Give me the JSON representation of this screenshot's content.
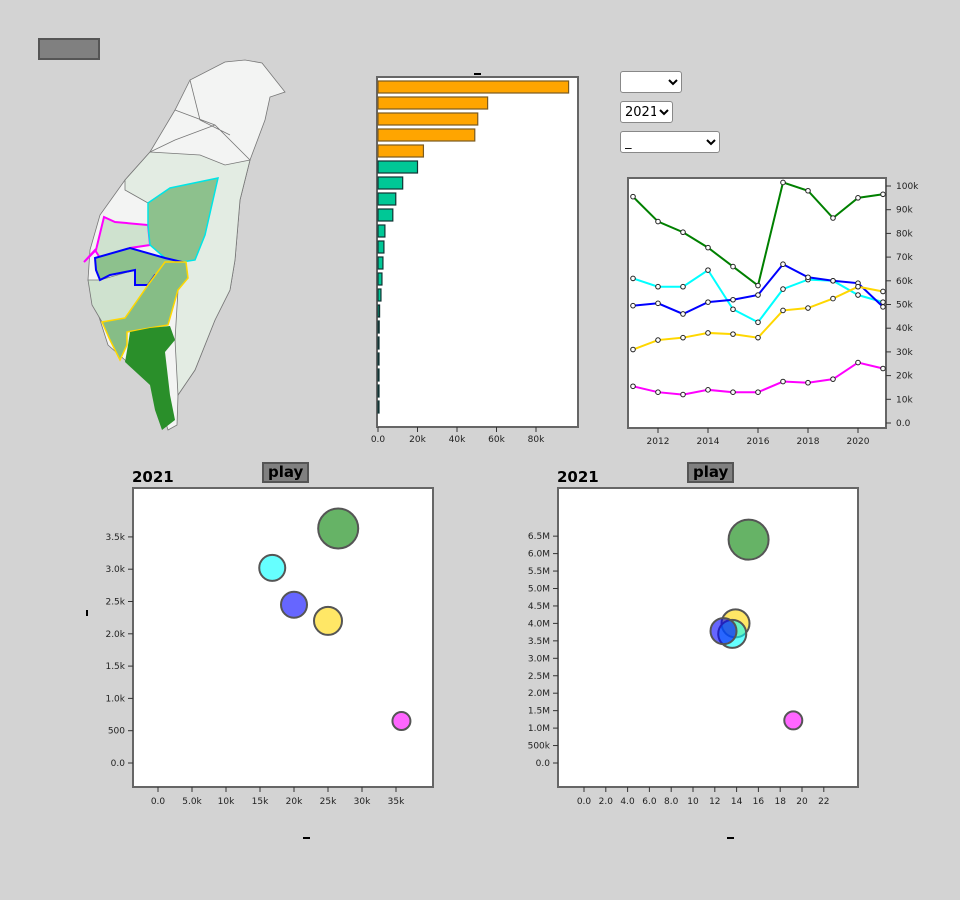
{
  "controls": {
    "select1_value": "",
    "year_select_value": "2021",
    "select3_value": "_"
  },
  "colors": {
    "green": "#008000",
    "cyan": "#00ffff",
    "blue": "#0000ff",
    "yellow": "#ffd700",
    "magenta": "#ff00ff",
    "bar_orange": "#ffa500",
    "bar_teal": "#00c896"
  },
  "bar_chart": {
    "type": "bar",
    "orientation": "horizontal",
    "title": "_",
    "xticks": [
      "0.0",
      "20k",
      "40k",
      "60k",
      "80k"
    ],
    "xlim": [
      0,
      100000
    ],
    "values": [
      96500,
      55500,
      50500,
      49000,
      23000,
      20000,
      12500,
      9000,
      7500,
      3500,
      3000,
      2500,
      2000,
      1500,
      800,
      600,
      100,
      100,
      100,
      100,
      100
    ],
    "highlight_count": 5
  },
  "chart_data": [
    {
      "type": "line",
      "x": [
        2011,
        2012,
        2013,
        2014,
        2015,
        2016,
        2017,
        2018,
        2019,
        2020,
        2021
      ],
      "xticks": [
        "2012",
        "2014",
        "2016",
        "2018",
        "2020"
      ],
      "yticks": [
        "0.0",
        "10k",
        "20k",
        "30k",
        "40k",
        "50k",
        "60k",
        "70k",
        "80k",
        "90k",
        "100k"
      ],
      "ylim": [
        0,
        102000
      ],
      "series": [
        {
          "name": "green",
          "color": "#008000",
          "values": [
            95500,
            85000,
            80500,
            74000,
            66000,
            58000,
            101500,
            98000,
            86500,
            95000,
            96500
          ]
        },
        {
          "name": "cyan",
          "color": "#00ffff",
          "values": [
            61000,
            57500,
            57500,
            64500,
            48000,
            42500,
            56500,
            60500,
            60000,
            54000,
            51000
          ]
        },
        {
          "name": "blue",
          "color": "#0000ff",
          "values": [
            49500,
            50500,
            46000,
            51000,
            52000,
            54000,
            67000,
            61500,
            60000,
            59000,
            49000
          ]
        },
        {
          "name": "yellow",
          "color": "#ffd700",
          "values": [
            31000,
            35000,
            36000,
            38000,
            37500,
            36000,
            47500,
            48500,
            52500,
            57500,
            55500
          ]
        },
        {
          "name": "magenta",
          "color": "#ff00ff",
          "values": [
            15500,
            13000,
            12000,
            14000,
            13000,
            13000,
            17500,
            17000,
            18500,
            25500,
            23000
          ]
        }
      ]
    },
    {
      "type": "scatter",
      "title": "2021",
      "play_label": "play",
      "xlabel": "_",
      "ylabel": "_",
      "xticks": [
        "0.0",
        "5.0k",
        "10k",
        "15k",
        "20k",
        "25k",
        "30k",
        "35k"
      ],
      "xtick_values": [
        0,
        5000,
        10000,
        15000,
        20000,
        25000,
        30000,
        35000
      ],
      "yticks": [
        "0.0",
        "500",
        "1.0k",
        "1.5k",
        "2.0k",
        "2.5k",
        "3.0k",
        "3.5k"
      ],
      "ytick_values": [
        0,
        500,
        1000,
        1500,
        2000,
        2500,
        3000,
        3500
      ],
      "xlim": [
        -3700,
        40400
      ],
      "ylim": [
        -370,
        4270
      ],
      "points": [
        {
          "name": "green",
          "color": "#008000",
          "x": 26500,
          "y": 3630,
          "size": 20
        },
        {
          "name": "cyan",
          "color": "#00ffff",
          "x": 16800,
          "y": 3020,
          "size": 13
        },
        {
          "name": "blue",
          "color": "#0000ff",
          "x": 20000,
          "y": 2450,
          "size": 13
        },
        {
          "name": "yellow",
          "color": "#ffd700",
          "x": 25000,
          "y": 2200,
          "size": 14
        },
        {
          "name": "magenta",
          "color": "#ff00ff",
          "x": 35800,
          "y": 650,
          "size": 9
        }
      ]
    },
    {
      "type": "scatter",
      "title": "2021",
      "play_label": "play",
      "xlabel": "_",
      "ylabel": "",
      "xticks": [
        "0.0",
        "2.0",
        "4.0",
        "6.0",
        "8.0",
        "10",
        "12",
        "14",
        "16",
        "18",
        "20",
        "22"
      ],
      "xtick_values": [
        0,
        2,
        4,
        6,
        8,
        10,
        12,
        14,
        16,
        18,
        20,
        22
      ],
      "yticks": [
        "0.0",
        "500k",
        "1.0M",
        "1.5M",
        "2.0M",
        "2.5M",
        "3.0M",
        "3.5M",
        "4.0M",
        "4.5M",
        "5.0M",
        "5.5M",
        "6.0M",
        "6.5M"
      ],
      "ytick_values": [
        0,
        500000,
        1000000,
        1500000,
        2000000,
        2500000,
        3000000,
        3500000,
        4000000,
        4500000,
        5000000,
        5500000,
        6000000,
        6500000
      ],
      "xlim": [
        -2.4,
        25.1
      ],
      "ylim": [
        -690000,
        7900000
      ],
      "points": [
        {
          "name": "green",
          "color": "#008000",
          "x": 15.1,
          "y": 6400000,
          "size": 20
        },
        {
          "name": "yellow",
          "color": "#ffd700",
          "x": 13.9,
          "y": 4000000,
          "size": 14
        },
        {
          "name": "cyan",
          "color": "#00ffff",
          "x": 13.6,
          "y": 3700000,
          "size": 14
        },
        {
          "name": "blue",
          "color": "#0000ff",
          "x": 12.8,
          "y": 3780000,
          "size": 13
        },
        {
          "name": "magenta",
          "color": "#ff00ff",
          "x": 19.2,
          "y": 1220000,
          "size": 9
        }
      ]
    }
  ]
}
